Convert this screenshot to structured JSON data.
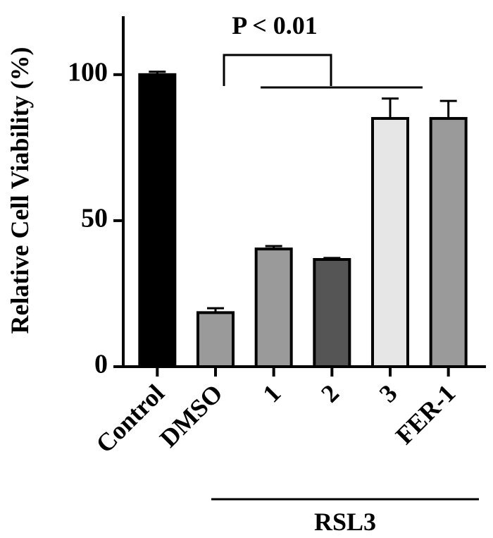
{
  "chart_data": {
    "type": "bar",
    "y_label": "Relative Cell Viability (%)",
    "annotation": "P < 0.01",
    "group_label": "RSL3",
    "categories": [
      "Control",
      "DMSO",
      "1",
      "2",
      "3",
      "FER-1"
    ],
    "values": [
      100,
      18.5,
      40.3,
      36.7,
      85,
      85
    ],
    "errors": [
      1,
      1.5,
      1,
      0.5,
      6.8,
      6
    ],
    "colors": [
      "#000000",
      "#9a9a9a",
      "#9a9a9a",
      "#555555",
      "#e6e6e6",
      "#9a9a9a"
    ],
    "ylim": [
      0,
      120
    ],
    "yticks": [
      0,
      50,
      100
    ]
  }
}
